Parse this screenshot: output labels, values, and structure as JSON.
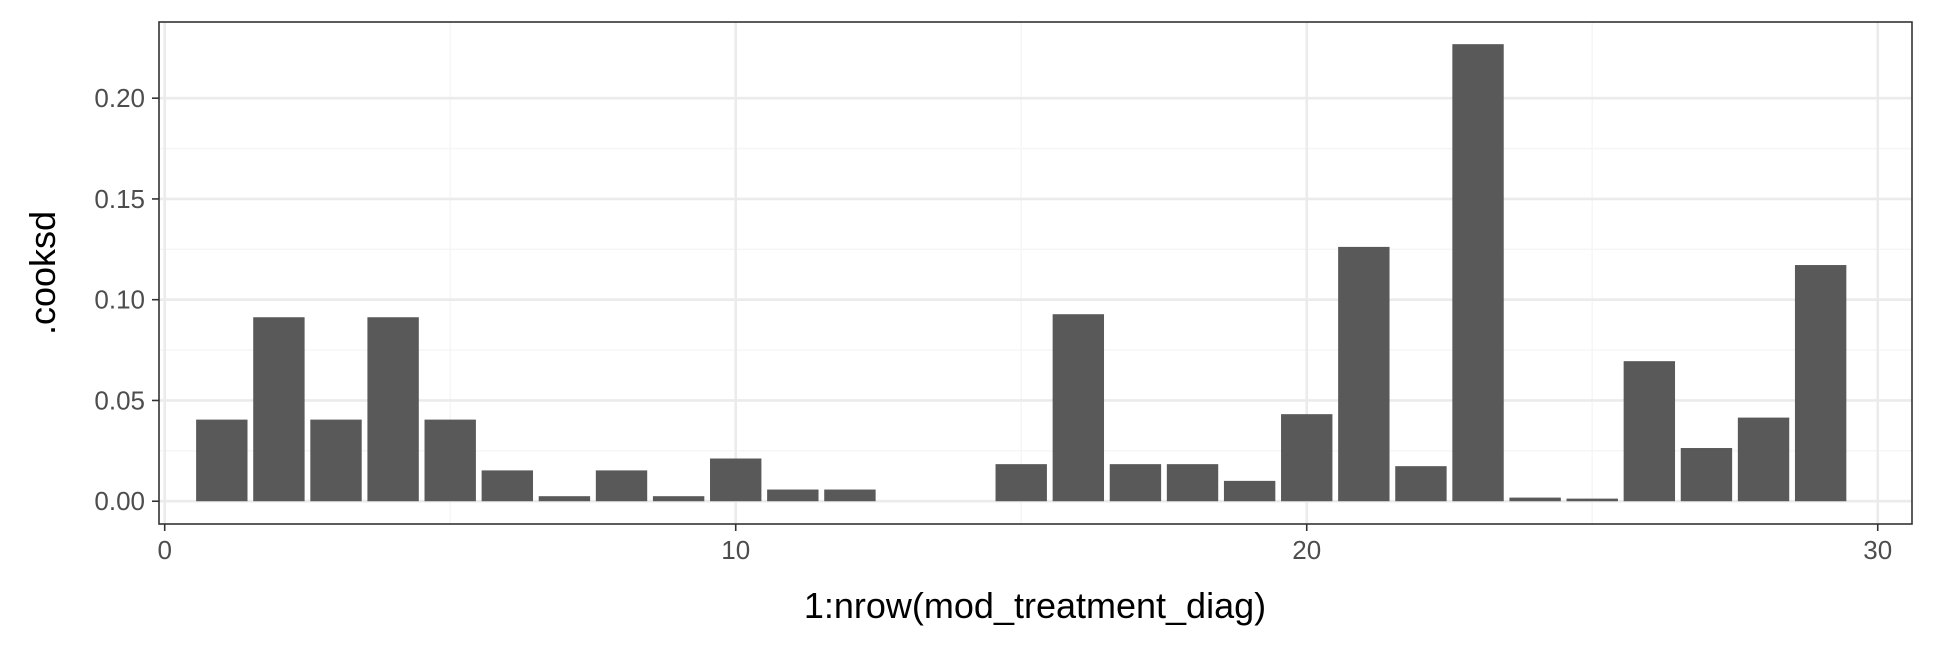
{
  "colors": {
    "bar": "#595959",
    "panel_border": "#333333",
    "grid_major": "#ebebeb",
    "grid_minor": "#f5f5f5",
    "tick_text": "#4d4d4d",
    "axis_title": "#000000"
  },
  "chart_data": {
    "type": "bar",
    "title": "",
    "xlabel": "1:nrow(mod_treatment_diag)",
    "ylabel": ".cooksd",
    "xlim": [
      -0.1,
      30.6
    ],
    "ylim": [
      -0.0113,
      0.2378
    ],
    "x_ticks": [
      0,
      10,
      20,
      30
    ],
    "x_tick_labels": [
      "0",
      "10",
      "20",
      "30"
    ],
    "y_ticks": [
      0.0,
      0.05,
      0.1,
      0.15,
      0.2
    ],
    "y_tick_labels": [
      "0.00",
      "0.05",
      "0.10",
      "0.15",
      "0.20"
    ],
    "grid": true,
    "legend": "none",
    "x": [
      1,
      2,
      3,
      4,
      5,
      6,
      7,
      8,
      9,
      10,
      11,
      12,
      13,
      14,
      15,
      16,
      17,
      18,
      19,
      20,
      21,
      22,
      23,
      24,
      25,
      26,
      27,
      28,
      29
    ],
    "values": [
      0.0405,
      0.0913,
      0.0405,
      0.0913,
      0.0405,
      0.0153,
      0.0025,
      0.0153,
      0.0025,
      0.0212,
      0.0058,
      0.0058,
      0,
      0,
      0.0184,
      0.0928,
      0.0184,
      0.0184,
      0.0101,
      0.0432,
      0.1262,
      0.0174,
      0.2268,
      0.0018,
      0.0013,
      0.0695,
      0.0264,
      0.0415,
      0.1172
    ]
  }
}
